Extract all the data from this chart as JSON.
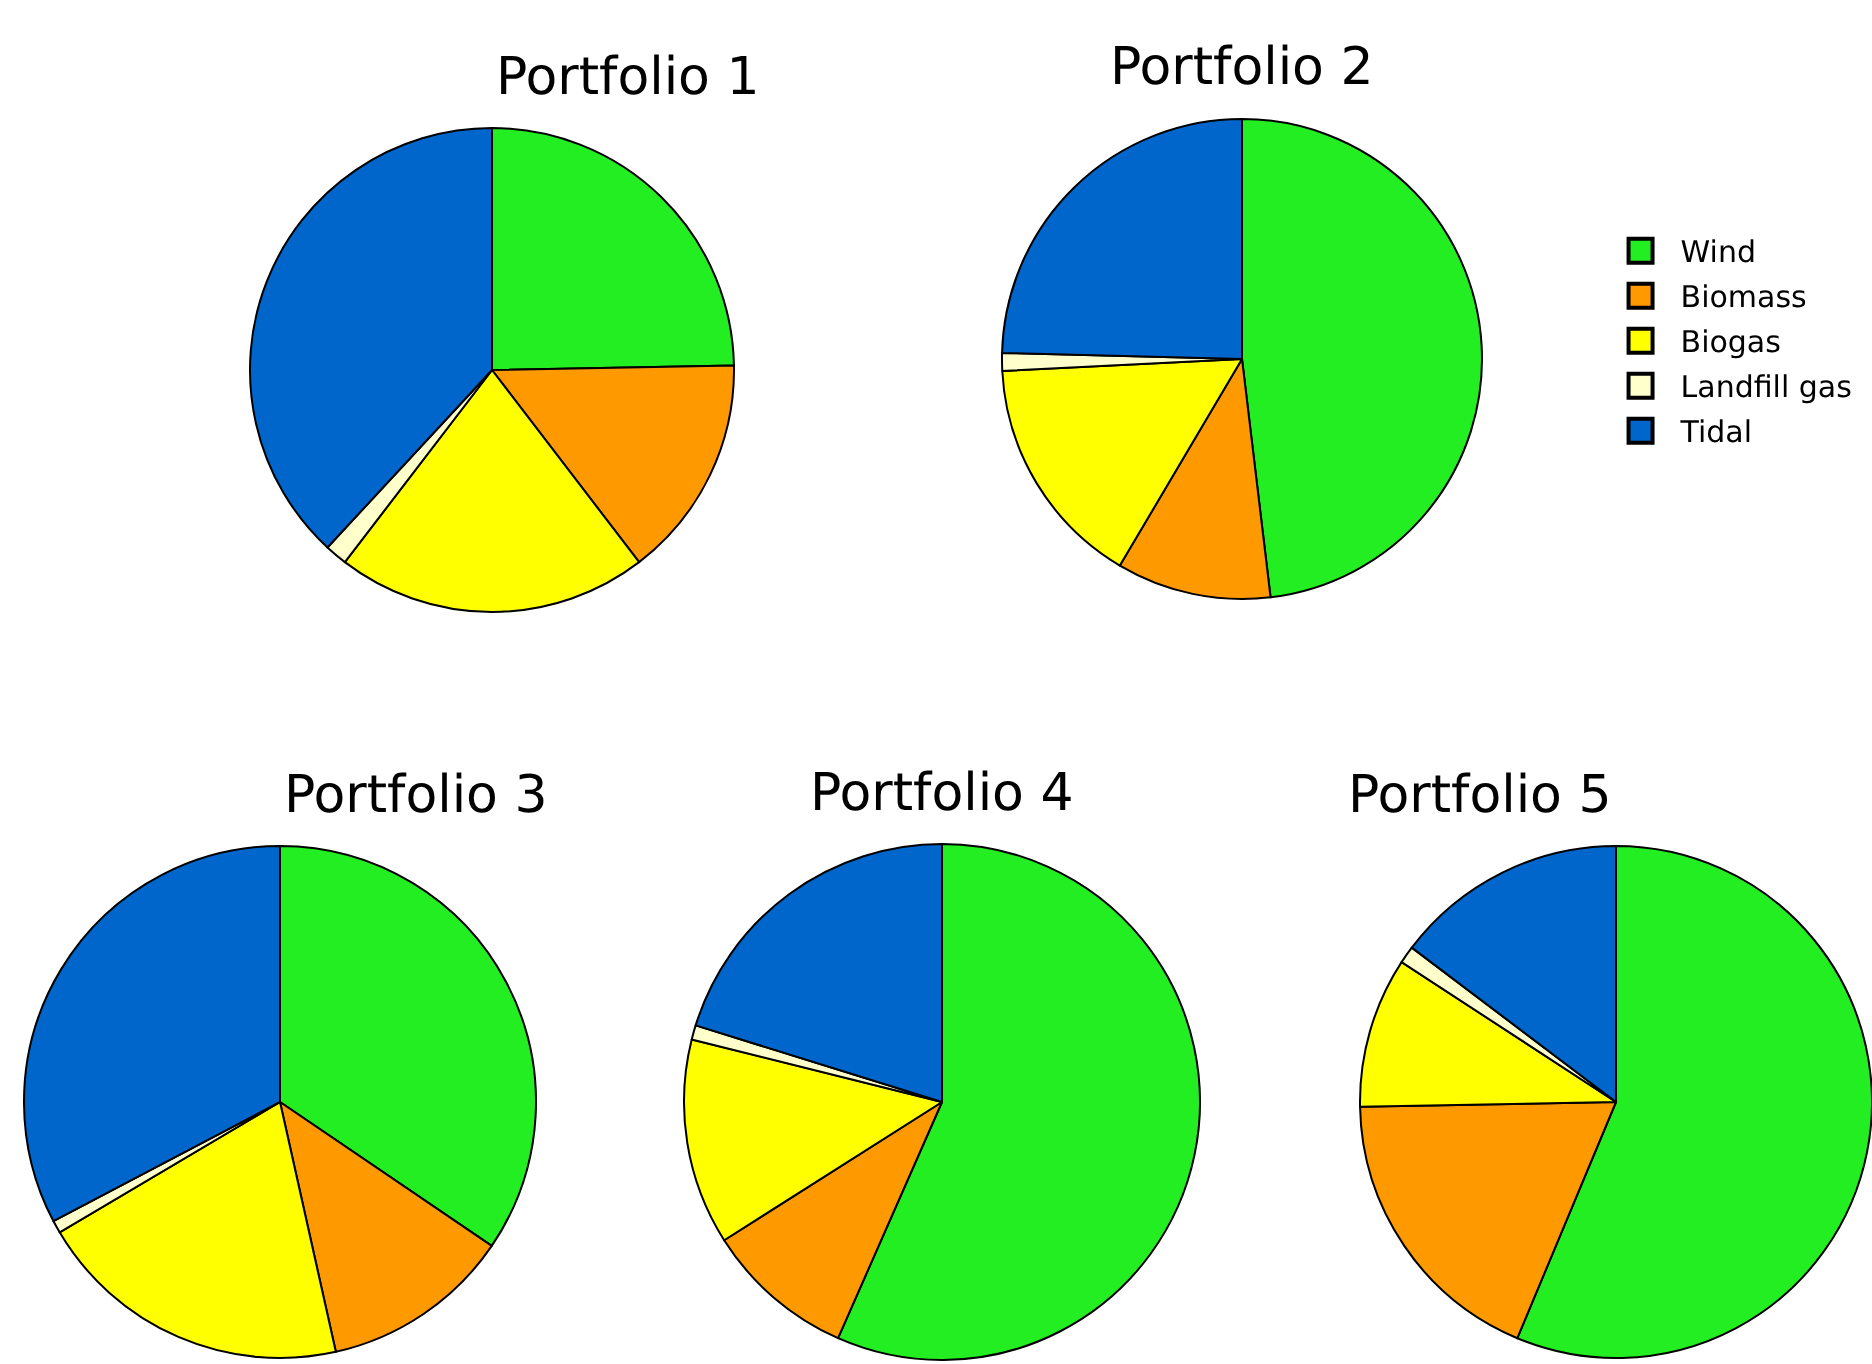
{
  "chart_data": [
    {
      "type": "pie",
      "title": "Portfolio 1",
      "categories": [
        "Wind",
        "Biomass",
        "Biogas",
        "Landfill gas",
        "Tidal"
      ],
      "values": [
        24.7,
        14.9,
        20.8,
        1.5,
        38.1
      ],
      "colors": [
        "#22ee22",
        "#ff9900",
        "#ffff00",
        "#ffffcc",
        "#0066cc"
      ],
      "legend": "right"
    },
    {
      "type": "pie",
      "title": "Portfolio 2",
      "categories": [
        null,
        null,
        null,
        null,
        null
      ],
      "values": [
        48.1,
        10.4,
        15.7,
        1.2,
        24.6
      ],
      "colors": [
        "#22ee22",
        "#ff9900",
        "#ffff00",
        "#ffffcc",
        "#0066cc"
      ]
    },
    {
      "type": "pie",
      "title": "Portfolio 3",
      "categories": [
        null,
        null,
        null,
        null,
        null
      ],
      "values": [
        34.5,
        12.0,
        20.0,
        0.8,
        32.7
      ],
      "colors": [
        "#22ee22",
        "#ff9900",
        "#ffff00",
        "#ffffcc",
        "#0066cc"
      ]
    },
    {
      "type": "pie",
      "title": "Portfolio 4",
      "categories": [
        null,
        null,
        null,
        null,
        null
      ],
      "values": [
        56.6,
        9.4,
        12.9,
        0.9,
        20.2
      ],
      "colors": [
        "#22ee22",
        "#ff9900",
        "#ffff00",
        "#ffffcc",
        "#0066cc"
      ]
    },
    {
      "type": "pie",
      "title": "Portfolio 5",
      "categories": [
        null,
        null,
        null,
        null,
        null
      ],
      "values": [
        56.3,
        18.4,
        9.5,
        1.1,
        14.7
      ],
      "colors": [
        "#22ee22",
        "#ff9900",
        "#ffff00",
        "#ffffcc",
        "#0066cc"
      ]
    }
  ]
}
